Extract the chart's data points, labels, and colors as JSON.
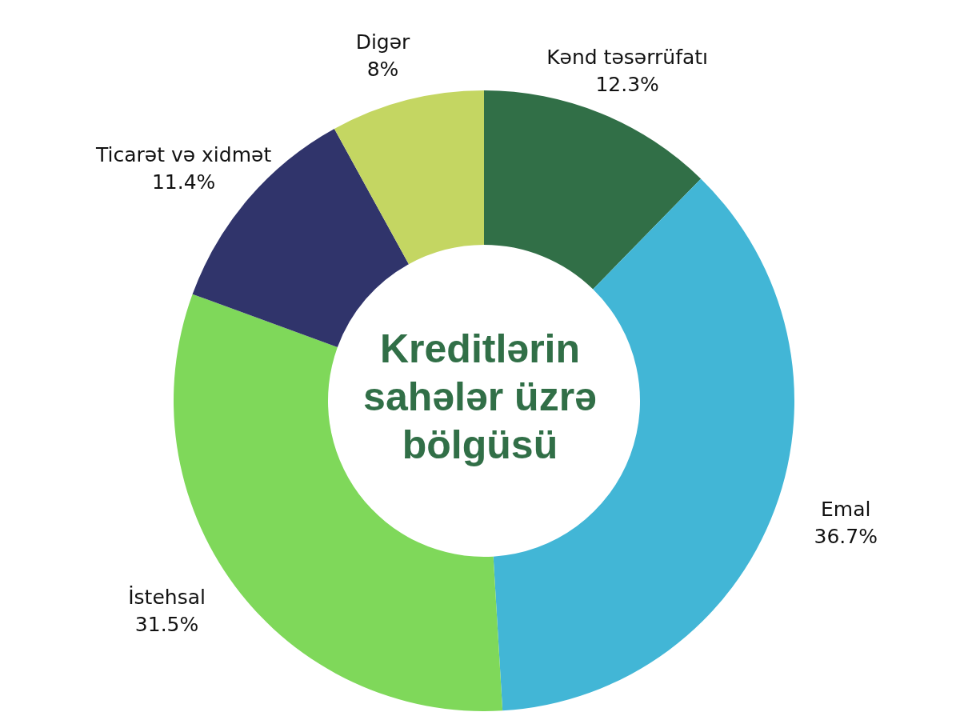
{
  "chart_data": {
    "type": "donut",
    "title": "Kreditlərin sahələr üzrə bölgüsü",
    "categories": [
      "Kənd təsərrüfatı",
      "Emal",
      "İstehsal",
      "Ticarət və xidmət",
      "Digər"
    ],
    "values": [
      12.3,
      36.7,
      31.5,
      11.4,
      8
    ],
    "value_labels": [
      "12.3%",
      "36.7%",
      "31.5%",
      "11.4%",
      "8%"
    ],
    "colors": [
      "#316f47",
      "#42b6d6",
      "#7fd85a",
      "#30346b",
      "#c4d662"
    ],
    "legend": false
  }
}
